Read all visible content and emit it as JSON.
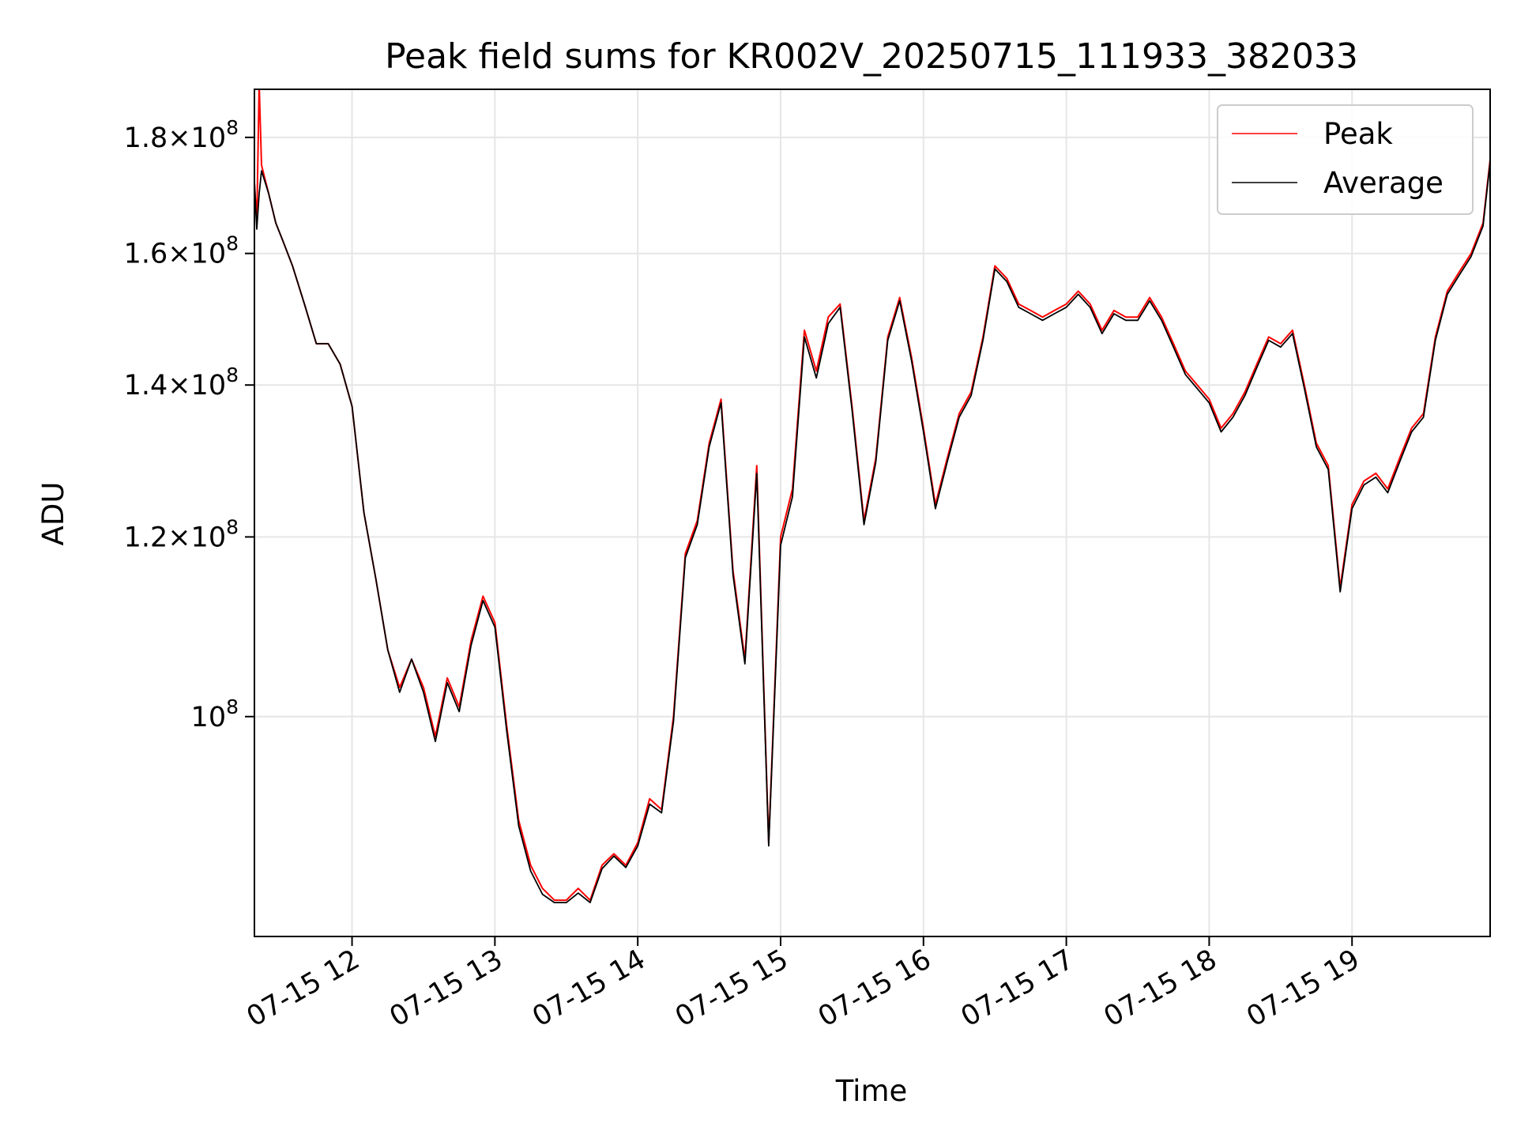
{
  "chart_data": {
    "type": "line",
    "title": "Peak field sums for KR002V_20250715_111933_382033",
    "xlabel": "Time",
    "ylabel": "ADU",
    "yscale": "log",
    "xlim": [
      "2025-07-15 11:19",
      "2025-07-15 19:58"
    ],
    "ylim": [
      80000000.0,
      189000000.0
    ],
    "grid": true,
    "legend_position": "upper-right",
    "x_tick_labels": [
      "07-15 12",
      "07-15 13",
      "07-15 14",
      "07-15 15",
      "07-15 16",
      "07-15 17",
      "07-15 18",
      "07-15 19"
    ],
    "x_tick_values": [
      "2025-07-15 12:00",
      "2025-07-15 13:00",
      "2025-07-15 14:00",
      "2025-07-15 15:00",
      "2025-07-15 16:00",
      "2025-07-15 17:00",
      "2025-07-15 18:00",
      "2025-07-15 19:00"
    ],
    "y_ticks": [
      {
        "value": 100000000.0,
        "mantissa": "",
        "exponent": "8"
      },
      {
        "value": 120000000.0,
        "mantissa": "1.2",
        "exponent": "8"
      },
      {
        "value": 140000000.0,
        "mantissa": "1.4",
        "exponent": "8"
      },
      {
        "value": 160000000.0,
        "mantissa": "1.6",
        "exponent": "8"
      },
      {
        "value": 180000000.0,
        "mantissa": "1.8",
        "exponent": "8"
      }
    ],
    "series": [
      {
        "name": "Peak",
        "color": "#ff0000",
        "x": [
          "11:19",
          "11:20",
          "11:21",
          "11:22",
          "11:25",
          "11:28",
          "11:31",
          "11:35",
          "11:40",
          "11:45",
          "11:50",
          "11:55",
          "12:00",
          "12:05",
          "12:10",
          "12:15",
          "12:20",
          "12:25",
          "12:30",
          "12:35",
          "12:40",
          "12:45",
          "12:50",
          "12:55",
          "13:00",
          "13:05",
          "13:10",
          "13:15",
          "13:20",
          "13:25",
          "13:30",
          "13:35",
          "13:40",
          "13:45",
          "13:50",
          "13:55",
          "14:00",
          "14:05",
          "14:10",
          "14:15",
          "14:20",
          "14:25",
          "14:30",
          "14:35",
          "14:40",
          "14:45",
          "14:50",
          "14:55",
          "15:00",
          "15:05",
          "15:10",
          "15:15",
          "15:20",
          "15:25",
          "15:30",
          "15:35",
          "15:40",
          "15:45",
          "15:50",
          "15:55",
          "16:00",
          "16:05",
          "16:10",
          "16:15",
          "16:20",
          "16:25",
          "16:30",
          "16:35",
          "16:40",
          "16:45",
          "16:50",
          "16:55",
          "17:00",
          "17:05",
          "17:10",
          "17:15",
          "17:20",
          "17:25",
          "17:30",
          "17:35",
          "17:40",
          "17:45",
          "17:50",
          "17:55",
          "18:00",
          "18:05",
          "18:10",
          "18:15",
          "18:20",
          "18:25",
          "18:30",
          "18:35",
          "18:40",
          "18:45",
          "18:50",
          "18:55",
          "19:00",
          "19:05",
          "19:10",
          "19:15",
          "19:20",
          "19:25",
          "19:30",
          "19:35",
          "19:40",
          "19:45",
          "19:50",
          "19:55",
          "19:58"
        ],
        "y": [
          172000000,
          165000000,
          190000000,
          175000000,
          170000000,
          165000000,
          162000000,
          158000000,
          152000000,
          146000000,
          146000000,
          143000000,
          137000000,
          123000000,
          115000000,
          107000000,
          103000000,
          106000000,
          103000000,
          98000000,
          104000000,
          101000000,
          108000000,
          113000000,
          110000000,
          99000000,
          90000000,
          86000000,
          84000000,
          83000000,
          83000000,
          84000000,
          83000000,
          86000000,
          87000000,
          86000000,
          88000000,
          92000000,
          91000000,
          100000000,
          118000000,
          122000000,
          132000000,
          138000000,
          116000000,
          106000000,
          129000000,
          88000000,
          120000000,
          126000000,
          148000000,
          142000000,
          150000000,
          152000000,
          137000000,
          122000000,
          130000000,
          147000000,
          153000000,
          144000000,
          134000000,
          124000000,
          130000000,
          136000000,
          139000000,
          147000000,
          158000000,
          156000000,
          152000000,
          151000000,
          150000000,
          151000000,
          152000000,
          154000000,
          152000000,
          148000000,
          151000000,
          150000000,
          150000000,
          153000000,
          150000000,
          146000000,
          142000000,
          140000000,
          138000000,
          134000000,
          136000000,
          139000000,
          143000000,
          147000000,
          146000000,
          148000000,
          140000000,
          132000000,
          129000000,
          114000000,
          124000000,
          127000000,
          128000000,
          126000000,
          130000000,
          134000000,
          136000000,
          147000000,
          154000000,
          157000000,
          160000000,
          165000000,
          176000000
        ]
      },
      {
        "name": "Average",
        "color": "#000000",
        "x": [
          "11:19",
          "11:20",
          "11:21",
          "11:22",
          "11:25",
          "11:28",
          "11:31",
          "11:35",
          "11:40",
          "11:45",
          "11:50",
          "11:55",
          "12:00",
          "12:05",
          "12:10",
          "12:15",
          "12:20",
          "12:25",
          "12:30",
          "12:35",
          "12:40",
          "12:45",
          "12:50",
          "12:55",
          "13:00",
          "13:05",
          "13:10",
          "13:15",
          "13:20",
          "13:25",
          "13:30",
          "13:35",
          "13:40",
          "13:45",
          "13:50",
          "13:55",
          "14:00",
          "14:05",
          "14:10",
          "14:15",
          "14:20",
          "14:25",
          "14:30",
          "14:35",
          "14:40",
          "14:45",
          "14:50",
          "14:55",
          "15:00",
          "15:05",
          "15:10",
          "15:15",
          "15:20",
          "15:25",
          "15:30",
          "15:35",
          "15:40",
          "15:45",
          "15:50",
          "15:55",
          "16:00",
          "16:05",
          "16:10",
          "16:15",
          "16:20",
          "16:25",
          "16:30",
          "16:35",
          "16:40",
          "16:45",
          "16:50",
          "16:55",
          "17:00",
          "17:05",
          "17:10",
          "17:15",
          "17:20",
          "17:25",
          "17:30",
          "17:35",
          "17:40",
          "17:45",
          "17:50",
          "17:55",
          "18:00",
          "18:05",
          "18:10",
          "18:15",
          "18:20",
          "18:25",
          "18:30",
          "18:35",
          "18:40",
          "18:45",
          "18:50",
          "18:55",
          "19:00",
          "19:05",
          "19:10",
          "19:15",
          "19:20",
          "19:25",
          "19:30",
          "19:35",
          "19:40",
          "19:45",
          "19:50",
          "19:55",
          "19:58"
        ],
        "y": [
          172000000,
          164000000,
          170000000,
          174000000,
          170000000,
          165000000,
          162000000,
          158000000,
          152000000,
          146000000,
          146000000,
          143000000,
          137000000,
          123000000,
          115000000,
          107000000,
          102500000,
          106000000,
          102500000,
          97500000,
          103500000,
          100500000,
          107500000,
          112500000,
          109500000,
          98500000,
          89500000,
          85500000,
          83500000,
          82800000,
          82800000,
          83600000,
          82800000,
          85700000,
          86800000,
          85800000,
          87700000,
          91500000,
          90700000,
          99500000,
          117500000,
          121500000,
          131500000,
          137500000,
          115500000,
          105500000,
          128000000,
          87700000,
          119000000,
          125000000,
          147000000,
          141000000,
          149000000,
          151500000,
          136500000,
          121500000,
          129500000,
          146500000,
          152500000,
          143500000,
          133500000,
          123500000,
          129500000,
          135500000,
          138500000,
          146500000,
          157500000,
          155500000,
          151500000,
          150500000,
          149500000,
          150500000,
          151500000,
          153500000,
          151500000,
          147500000,
          150500000,
          149500000,
          149500000,
          152500000,
          149500000,
          145500000,
          141500000,
          139500000,
          137500000,
          133500000,
          135500000,
          138500000,
          142500000,
          146500000,
          145500000,
          147500000,
          139500000,
          131500000,
          128500000,
          113500000,
          123500000,
          126500000,
          127500000,
          125500000,
          129500000,
          133500000,
          135500000,
          146500000,
          153500000,
          156500000,
          159500000,
          164500000,
          175500000
        ]
      }
    ]
  }
}
